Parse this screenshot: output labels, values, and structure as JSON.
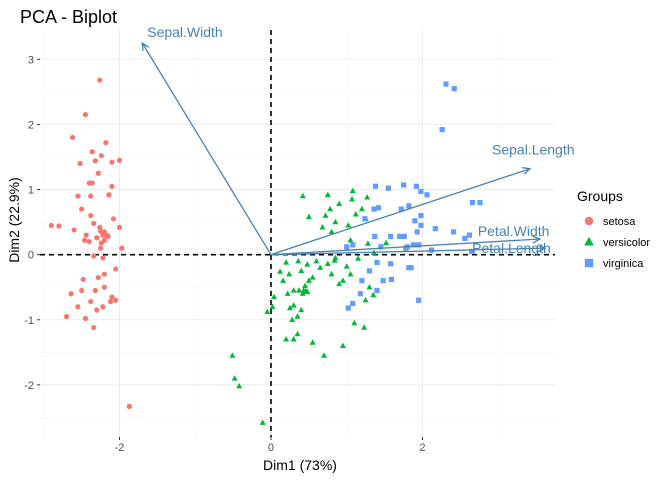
{
  "chart_data": {
    "type": "scatter",
    "title": "PCA - Biplot",
    "xlabel": "Dim1 (73%)",
    "ylabel": "Dim2 (22.9%)",
    "xlim": [
      -3.05,
      3.75
    ],
    "ylim": [
      -2.8,
      3.45
    ],
    "x_ticks": [
      -2,
      0,
      2
    ],
    "y_ticks": [
      -2,
      -1,
      0,
      1,
      2,
      3
    ],
    "grid": true,
    "legend": {
      "title": "Groups",
      "placement": "right"
    },
    "colors": {
      "setosa": "#f8766d",
      "versicolor": "#00ba38",
      "virginica": "#619cff",
      "arrows": "#4682b4"
    },
    "series": [
      {
        "name": "setosa",
        "marker": "circle",
        "points": [
          [
            -2.26,
            2.68
          ],
          [
            -2.45,
            2.15
          ],
          [
            -2.18,
            1.72
          ],
          [
            -2.62,
            1.8
          ],
          [
            -2.36,
            1.58
          ],
          [
            -2.32,
            1.44
          ],
          [
            -2.24,
            1.52
          ],
          [
            -2.0,
            1.45
          ],
          [
            -2.1,
            1.42
          ],
          [
            -2.28,
            1.25
          ],
          [
            -2.52,
            1.4
          ],
          [
            -2.4,
            1.1
          ],
          [
            -2.36,
            1.1
          ],
          [
            -2.1,
            1.05
          ],
          [
            -2.55,
            0.9
          ],
          [
            -2.38,
            0.9
          ],
          [
            -2.14,
            0.92
          ],
          [
            -2.5,
            0.7
          ],
          [
            -2.38,
            0.6
          ],
          [
            -2.34,
            0.48
          ],
          [
            -2.08,
            0.55
          ],
          [
            -2.26,
            0.42
          ],
          [
            -2.8,
            0.44
          ],
          [
            -2.6,
            0.38
          ],
          [
            -2.44,
            0.3
          ],
          [
            -2.2,
            0.35
          ],
          [
            -2.15,
            0.28
          ],
          [
            -2.22,
            0.3
          ],
          [
            -2.2,
            0.22
          ],
          [
            -2.24,
            0.18
          ],
          [
            -2.18,
            0.3
          ],
          [
            -2.25,
            0.36
          ],
          [
            -2.3,
            0.26
          ],
          [
            -2.4,
            0.2
          ],
          [
            -2.46,
            0.22
          ],
          [
            -2.0,
            0.42
          ],
          [
            -2.9,
            0.45
          ],
          [
            -1.97,
            0.1
          ],
          [
            -2.25,
            0.1
          ],
          [
            -2.22,
            -0.05
          ],
          [
            -2.34,
            -0.02
          ],
          [
            -2.05,
            -0.22
          ],
          [
            -2.28,
            -0.35
          ],
          [
            -2.2,
            -0.3
          ],
          [
            -2.48,
            -0.38
          ],
          [
            -2.5,
            -0.55
          ],
          [
            -2.64,
            -0.6
          ],
          [
            -2.2,
            -0.5
          ],
          [
            -2.32,
            -0.55
          ],
          [
            -2.1,
            -0.65
          ],
          [
            -2.38,
            -0.72
          ],
          [
            -2.55,
            -0.8
          ],
          [
            -2.05,
            -0.7
          ],
          [
            -2.3,
            -0.85
          ],
          [
            -2.22,
            -0.8
          ],
          [
            -2.12,
            -0.72
          ],
          [
            -2.7,
            -0.95
          ],
          [
            -2.45,
            -0.98
          ],
          [
            -2.34,
            -1.12
          ],
          [
            -1.87,
            -2.33
          ]
        ]
      },
      {
        "name": "versicolor",
        "marker": "triangle",
        "points": [
          [
            -0.51,
            -1.55
          ],
          [
            -0.48,
            -1.9
          ],
          [
            -0.42,
            -2.02
          ],
          [
            -0.11,
            -2.58
          ],
          [
            -0.05,
            -0.88
          ],
          [
            0.02,
            -0.8
          ],
          [
            0.04,
            -0.65
          ],
          [
            0.22,
            -0.6
          ],
          [
            0.24,
            -0.3
          ],
          [
            0.3,
            -0.55
          ],
          [
            0.16,
            -0.4
          ],
          [
            0.4,
            -0.25
          ],
          [
            0.55,
            -0.35
          ],
          [
            0.65,
            -0.2
          ],
          [
            0.48,
            -0.15
          ],
          [
            0.6,
            -0.1
          ],
          [
            0.36,
            -0.1
          ],
          [
            0.2,
            -0.12
          ],
          [
            0.12,
            -0.26
          ],
          [
            0.75,
            -0.14
          ],
          [
            0.85,
            -0.05
          ],
          [
            1.0,
            -0.18
          ],
          [
            0.8,
            -0.3
          ],
          [
            0.9,
            -0.45
          ],
          [
            0.95,
            -0.4
          ],
          [
            0.5,
            -0.4
          ],
          [
            0.45,
            -0.48
          ],
          [
            0.42,
            -0.6
          ],
          [
            0.3,
            -0.78
          ],
          [
            0.25,
            -0.82
          ],
          [
            0.4,
            -0.85
          ],
          [
            0.28,
            -1.0
          ],
          [
            0.35,
            -1.22
          ],
          [
            0.2,
            -1.3
          ],
          [
            0.55,
            -1.35
          ],
          [
            0.3,
            -1.3
          ],
          [
            0.7,
            -1.55
          ],
          [
            0.95,
            -1.4
          ],
          [
            1.23,
            -1.12
          ],
          [
            1.1,
            -1.05
          ],
          [
            1.25,
            -0.7
          ],
          [
            1.35,
            -0.62
          ],
          [
            1.3,
            -0.5
          ],
          [
            1.05,
            -0.3
          ],
          [
            1.15,
            -0.06
          ],
          [
            1.28,
            0.17
          ],
          [
            1.05,
            0.22
          ],
          [
            0.8,
            0.35
          ],
          [
            0.68,
            0.42
          ],
          [
            0.85,
            0.5
          ],
          [
            1.02,
            0.45
          ],
          [
            0.72,
            0.6
          ],
          [
            1.12,
            0.62
          ],
          [
            1.2,
            0.7
          ],
          [
            0.78,
            0.7
          ],
          [
            0.9,
            0.78
          ],
          [
            0.5,
            0.58
          ],
          [
            1.07,
            0.85
          ],
          [
            0.42,
            0.9
          ],
          [
            0.75,
            0.92
          ],
          [
            1.08,
            0.98
          ],
          [
            1.27,
            0.88
          ],
          [
            1.25,
            0.55
          ],
          [
            1.52,
            0.18
          ],
          [
            1.36,
            0.03
          ],
          [
            0.84,
            -0.09
          ],
          [
            0.35,
            -0.95
          ],
          [
            0.37,
            -0.55
          ],
          [
            0.43,
            -0.55
          ],
          [
            0.46,
            -0.56
          ],
          [
            0.48,
            -0.57
          ]
        ]
      },
      {
        "name": "virginica",
        "marker": "square",
        "points": [
          [
            2.31,
            2.62
          ],
          [
            2.42,
            2.55
          ],
          [
            2.26,
            1.92
          ],
          [
            1.92,
            1.05
          ],
          [
            1.75,
            1.07
          ],
          [
            1.55,
            1.02
          ],
          [
            1.38,
            1.05
          ],
          [
            1.98,
            0.97
          ],
          [
            2.06,
            0.92
          ],
          [
            2.66,
            0.8
          ],
          [
            2.76,
            0.8
          ],
          [
            1.82,
            0.75
          ],
          [
            1.72,
            0.7
          ],
          [
            1.98,
            0.6
          ],
          [
            1.9,
            0.52
          ],
          [
            1.42,
            0.72
          ],
          [
            1.36,
            0.7
          ],
          [
            1.24,
            0.55
          ],
          [
            1.93,
            0.35
          ],
          [
            1.7,
            0.28
          ],
          [
            1.76,
            0.28
          ],
          [
            1.58,
            0.28
          ],
          [
            1.37,
            0.28
          ],
          [
            1.98,
            0.45
          ],
          [
            2.17,
            0.4
          ],
          [
            2.41,
            0.35
          ],
          [
            2.62,
            0.3
          ],
          [
            2.56,
            0.25
          ],
          [
            1.88,
            0.15
          ],
          [
            1.95,
            0.15
          ],
          [
            2.12,
            0.07
          ],
          [
            1.45,
            0.12
          ],
          [
            1.0,
            0.12
          ],
          [
            1.08,
            0.15
          ],
          [
            1.8,
            0.12
          ],
          [
            1.78,
            0.1
          ],
          [
            2.65,
            0.05
          ],
          [
            1.4,
            -0.12
          ],
          [
            1.58,
            -0.14
          ],
          [
            1.85,
            -0.2
          ],
          [
            1.82,
            -0.2
          ],
          [
            1.3,
            -0.25
          ],
          [
            1.48,
            -0.4
          ],
          [
            1.59,
            -0.38
          ],
          [
            1.2,
            -0.4
          ],
          [
            1.4,
            -0.55
          ],
          [
            1.18,
            -0.6
          ],
          [
            1.95,
            -0.7
          ],
          [
            1.08,
            -0.75
          ],
          [
            1.02,
            -0.82
          ]
        ]
      }
    ],
    "variables": [
      {
        "name": "Sepal.Length",
        "x": 3.42,
        "y": 1.32
      },
      {
        "name": "Sepal.Width",
        "x": -1.7,
        "y": 3.25
      },
      {
        "name": "Petal.Width",
        "x": 3.55,
        "y": 0.24
      },
      {
        "name": "Petal.Length",
        "x": 3.62,
        "y": 0.1
      }
    ]
  }
}
